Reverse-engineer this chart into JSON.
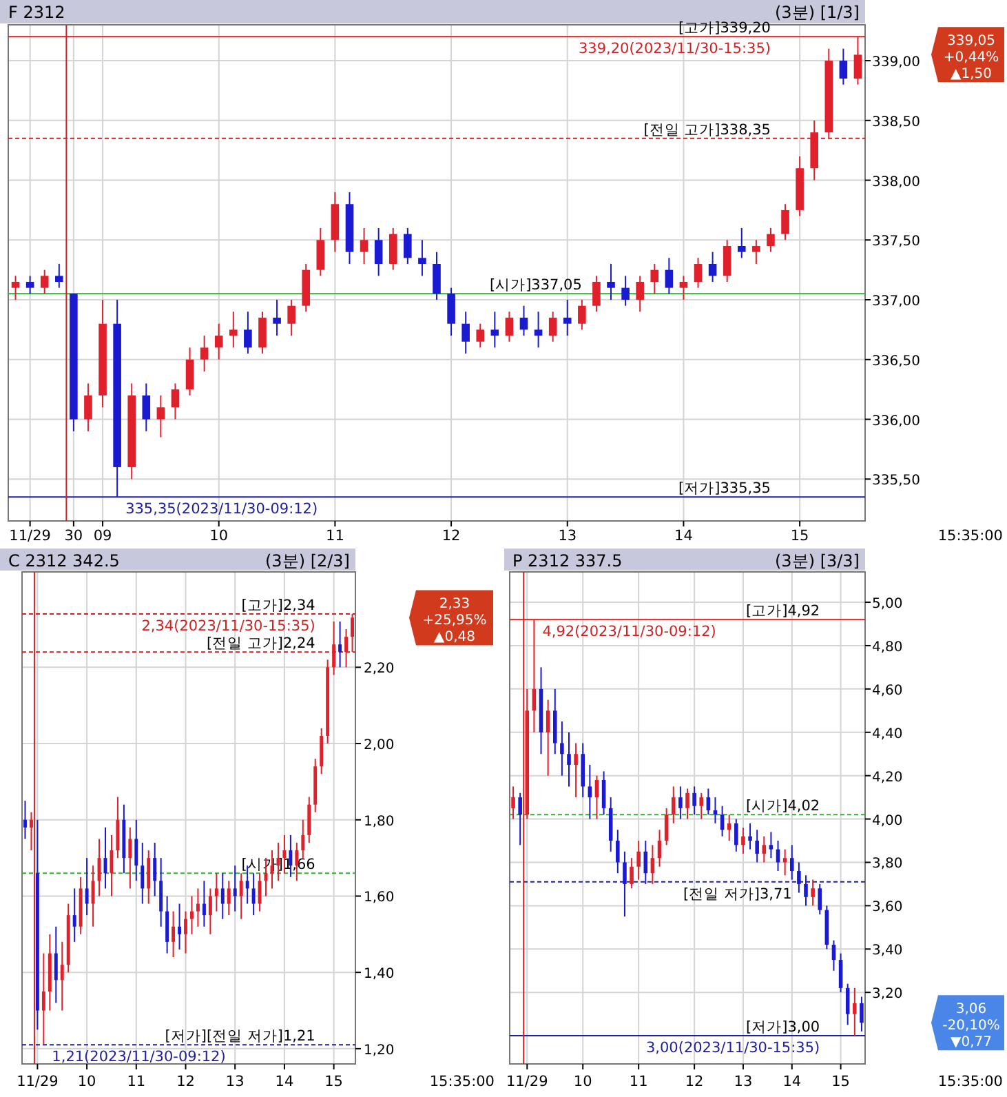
{
  "chart_data": [
    {
      "type": "candlestick",
      "title": "F 2312",
      "subtitle": "(3분) [1/3]",
      "grid": true,
      "categories": [
        null,
        "11/29",
        null,
        null,
        "30",
        null,
        "09",
        null,
        null,
        null,
        null,
        null,
        null,
        null,
        "10",
        null,
        null,
        null,
        null,
        null,
        null,
        null,
        "11",
        null,
        null,
        null,
        null,
        null,
        null,
        null,
        "12",
        null,
        null,
        null,
        null,
        null,
        null,
        null,
        "13",
        null,
        null,
        null,
        null,
        null,
        null,
        null,
        "14",
        null,
        null,
        null,
        null,
        null,
        null,
        null,
        "15",
        null,
        null,
        null,
        null
      ],
      "ohlc": [
        [
          337.1,
          337.2,
          337.0,
          337.15
        ],
        [
          337.15,
          337.2,
          337.05,
          337.1
        ],
        [
          337.1,
          337.25,
          337.05,
          337.2
        ],
        [
          337.2,
          337.3,
          337.1,
          337.15
        ],
        [
          337.05,
          337.05,
          335.9,
          336.0
        ],
        [
          336.0,
          336.3,
          335.9,
          336.2
        ],
        [
          336.2,
          337.0,
          336.1,
          336.8
        ],
        [
          336.8,
          337.0,
          335.35,
          335.6
        ],
        [
          335.6,
          336.3,
          335.5,
          336.2
        ],
        [
          336.2,
          336.3,
          335.9,
          336.0
        ],
        [
          336.0,
          336.2,
          335.85,
          336.1
        ],
        [
          336.1,
          336.3,
          336.0,
          336.25
        ],
        [
          336.25,
          336.6,
          336.2,
          336.5
        ],
        [
          336.5,
          336.7,
          336.4,
          336.6
        ],
        [
          336.6,
          336.8,
          336.5,
          336.7
        ],
        [
          336.7,
          336.9,
          336.6,
          336.75
        ],
        [
          336.75,
          336.9,
          336.55,
          336.6
        ],
        [
          336.6,
          336.9,
          336.55,
          336.85
        ],
        [
          336.85,
          337.0,
          336.7,
          336.8
        ],
        [
          336.8,
          337.0,
          336.7,
          336.95
        ],
        [
          336.95,
          337.3,
          336.9,
          337.25
        ],
        [
          337.25,
          337.6,
          337.2,
          337.5
        ],
        [
          337.5,
          337.9,
          337.4,
          337.8
        ],
        [
          337.8,
          337.9,
          337.3,
          337.4
        ],
        [
          337.4,
          337.6,
          337.3,
          337.5
        ],
        [
          337.5,
          337.6,
          337.2,
          337.3
        ],
        [
          337.3,
          337.6,
          337.25,
          337.55
        ],
        [
          337.55,
          337.6,
          337.3,
          337.35
        ],
        [
          337.35,
          337.5,
          337.2,
          337.3
        ],
        [
          337.3,
          337.4,
          337.0,
          337.05
        ],
        [
          337.05,
          337.1,
          336.7,
          336.8
        ],
        [
          336.8,
          336.9,
          336.55,
          336.65
        ],
        [
          336.65,
          336.8,
          336.6,
          336.75
        ],
        [
          336.75,
          336.9,
          336.6,
          336.7
        ],
        [
          336.7,
          336.9,
          336.65,
          336.85
        ],
        [
          336.85,
          336.95,
          336.7,
          336.75
        ],
        [
          336.75,
          336.9,
          336.6,
          336.7
        ],
        [
          336.7,
          336.9,
          336.65,
          336.85
        ],
        [
          336.85,
          337.0,
          336.7,
          336.8
        ],
        [
          336.8,
          337.0,
          336.75,
          336.95
        ],
        [
          336.95,
          337.2,
          336.9,
          337.15
        ],
        [
          337.15,
          337.3,
          337.0,
          337.1
        ],
        [
          337.1,
          337.2,
          336.95,
          337.0
        ],
        [
          337.0,
          337.2,
          336.9,
          337.15
        ],
        [
          337.15,
          337.3,
          337.05,
          337.25
        ],
        [
          337.25,
          337.35,
          337.05,
          337.1
        ],
        [
          337.1,
          337.2,
          337.0,
          337.15
        ],
        [
          337.15,
          337.35,
          337.1,
          337.3
        ],
        [
          337.3,
          337.4,
          337.15,
          337.2
        ],
        [
          337.2,
          337.5,
          337.15,
          337.45
        ],
        [
          337.45,
          337.6,
          337.35,
          337.4
        ],
        [
          337.4,
          337.5,
          337.3,
          337.45
        ],
        [
          337.45,
          337.6,
          337.4,
          337.55
        ],
        [
          337.55,
          337.8,
          337.5,
          337.75
        ],
        [
          337.75,
          338.2,
          337.7,
          338.1
        ],
        [
          338.1,
          338.5,
          338.0,
          338.4
        ],
        [
          338.4,
          339.1,
          338.35,
          339.0
        ],
        [
          339.0,
          339.1,
          338.8,
          338.85
        ],
        [
          338.85,
          339.2,
          338.8,
          339.05
        ]
      ],
      "ylim": [
        335.15,
        339.3
      ],
      "yticks": [
        {
          "value": 335.5,
          "label": "335,50"
        },
        {
          "value": 336.0,
          "label": "336,00"
        },
        {
          "value": 336.5,
          "label": "336,50"
        },
        {
          "value": 337.0,
          "label": "337,00"
        },
        {
          "value": 337.5,
          "label": "337,50"
        },
        {
          "value": 338.0,
          "label": "338,00"
        },
        {
          "value": 338.5,
          "label": "338,50"
        },
        {
          "value": 339.0,
          "label": "339,00"
        }
      ],
      "ref_lines": [
        {
          "axis": "y",
          "value": 339.2,
          "label": "[고가]339,20",
          "color": "#d42020",
          "line_style": "solid"
        },
        {
          "axis": "y",
          "value": 338.35,
          "label": "[전일 고가]338,35",
          "color": "#d42020",
          "line_style": "dashed"
        },
        {
          "axis": "y",
          "value": 337.05,
          "label": "[시가]337,05",
          "color": "#30b030",
          "line_style": "solid"
        },
        {
          "axis": "y",
          "value": 335.35,
          "label": "[저가]335,35",
          "color": "#2020a0",
          "line_style": "solid"
        },
        {
          "axis": "x",
          "value": "30",
          "label": null,
          "color": "#d42020",
          "line_style": "solid"
        }
      ],
      "annotations": [
        {
          "text": "339,20(2023/11/30-15:35)",
          "y": 339.2
        },
        {
          "text": "335,35(2023/11/30-09:12)",
          "y": 335.35
        },
        "339,05\n+0,44%\n▲1,50",
        "15:35:00"
      ]
    },
    {
      "type": "candlestick",
      "title": "C 2312 342.5",
      "subtitle": "(3분) [2/3]",
      "grid": true,
      "categories": [
        null,
        null,
        "11/29",
        null,
        null,
        null,
        null,
        null,
        null,
        null,
        "10",
        null,
        null,
        null,
        null,
        null,
        null,
        null,
        "11",
        null,
        null,
        null,
        null,
        null,
        null,
        null,
        "12",
        null,
        null,
        null,
        null,
        null,
        null,
        null,
        "13",
        null,
        null,
        null,
        null,
        null,
        null,
        null,
        "14",
        null,
        null,
        null,
        null,
        null,
        null,
        null,
        "15",
        null,
        null,
        null
      ],
      "ohlc": [
        [
          1.8,
          1.85,
          1.75,
          1.78
        ],
        [
          1.78,
          1.82,
          1.72,
          1.8
        ],
        [
          1.66,
          1.8,
          1.25,
          1.3
        ],
        [
          1.3,
          1.45,
          1.21,
          1.35
        ],
        [
          1.35,
          1.5,
          1.3,
          1.45
        ],
        [
          1.45,
          1.52,
          1.32,
          1.38
        ],
        [
          1.38,
          1.48,
          1.3,
          1.42
        ],
        [
          1.42,
          1.58,
          1.4,
          1.55
        ],
        [
          1.55,
          1.62,
          1.48,
          1.52
        ],
        [
          1.52,
          1.65,
          1.5,
          1.62
        ],
        [
          1.62,
          1.7,
          1.55,
          1.58
        ],
        [
          1.58,
          1.68,
          1.52,
          1.64
        ],
        [
          1.64,
          1.75,
          1.6,
          1.7
        ],
        [
          1.7,
          1.78,
          1.62,
          1.66
        ],
        [
          1.66,
          1.76,
          1.6,
          1.72
        ],
        [
          1.72,
          1.86,
          1.7,
          1.8
        ],
        [
          1.8,
          1.84,
          1.66,
          1.7
        ],
        [
          1.7,
          1.78,
          1.62,
          1.75
        ],
        [
          1.75,
          1.8,
          1.64,
          1.68
        ],
        [
          1.68,
          1.74,
          1.58,
          1.62
        ],
        [
          1.62,
          1.72,
          1.58,
          1.7
        ],
        [
          1.7,
          1.74,
          1.6,
          1.64
        ],
        [
          1.64,
          1.7,
          1.52,
          1.56
        ],
        [
          1.56,
          1.6,
          1.45,
          1.48
        ],
        [
          1.48,
          1.56,
          1.44,
          1.52
        ],
        [
          1.52,
          1.58,
          1.46,
          1.5
        ],
        [
          1.5,
          1.56,
          1.45,
          1.54
        ],
        [
          1.54,
          1.6,
          1.5,
          1.56
        ],
        [
          1.56,
          1.62,
          1.52,
          1.58
        ],
        [
          1.58,
          1.64,
          1.52,
          1.55
        ],
        [
          1.55,
          1.62,
          1.5,
          1.6
        ],
        [
          1.6,
          1.66,
          1.56,
          1.62
        ],
        [
          1.62,
          1.66,
          1.54,
          1.58
        ],
        [
          1.58,
          1.64,
          1.55,
          1.62
        ],
        [
          1.62,
          1.68,
          1.56,
          1.6
        ],
        [
          1.6,
          1.66,
          1.54,
          1.64
        ],
        [
          1.64,
          1.68,
          1.58,
          1.62
        ],
        [
          1.62,
          1.66,
          1.55,
          1.58
        ],
        [
          1.58,
          1.66,
          1.56,
          1.64
        ],
        [
          1.64,
          1.7,
          1.6,
          1.66
        ],
        [
          1.66,
          1.72,
          1.62,
          1.68
        ],
        [
          1.68,
          1.74,
          1.64,
          1.7
        ],
        [
          1.7,
          1.76,
          1.66,
          1.72
        ],
        [
          1.72,
          1.76,
          1.65,
          1.68
        ],
        [
          1.68,
          1.74,
          1.64,
          1.72
        ],
        [
          1.72,
          1.8,
          1.7,
          1.76
        ],
        [
          1.76,
          1.86,
          1.74,
          1.84
        ],
        [
          1.84,
          1.96,
          1.82,
          1.94
        ],
        [
          1.94,
          2.04,
          1.92,
          2.02
        ],
        [
          2.02,
          2.22,
          2.0,
          2.2
        ],
        [
          2.2,
          2.32,
          2.18,
          2.26
        ],
        [
          2.26,
          2.32,
          2.2,
          2.24
        ],
        [
          2.24,
          2.3,
          2.2,
          2.28
        ],
        [
          2.28,
          2.34,
          2.24,
          2.33
        ]
      ],
      "ylim": [
        1.16,
        2.45
      ],
      "yticks": [
        {
          "value": 1.2,
          "label": "1,20"
        },
        {
          "value": 1.4,
          "label": "1,40"
        },
        {
          "value": 1.6,
          "label": "1,60"
        },
        {
          "value": 1.8,
          "label": "1,80"
        },
        {
          "value": 2.0,
          "label": "2,00"
        },
        {
          "value": 2.2,
          "label": "2,20"
        }
      ],
      "ref_lines": [
        {
          "axis": "y",
          "value": 2.34,
          "label": "[고가]2,34",
          "color": "#d42020",
          "line_style": "dashed"
        },
        {
          "axis": "y",
          "value": 2.24,
          "label": "[전일 고가]2,24",
          "color": "#d42020",
          "line_style": "dashed"
        },
        {
          "axis": "y",
          "value": 1.66,
          "label": "[시가]1,66",
          "color": "#30b030",
          "line_style": "dashed"
        },
        {
          "axis": "y",
          "value": 1.21,
          "label": "[저가][전일 저가]1,21",
          "color": "#2020a0",
          "line_style": "dashed"
        },
        {
          "axis": "x",
          "value": "11/29",
          "label": null,
          "color": "#d42020",
          "line_style": "solid"
        }
      ],
      "annotations": [
        {
          "text": "2,34(2023/11/30-15:35)",
          "y": 2.34
        },
        {
          "text": "1,21(2023/11/30-09:12)",
          "y": 1.21
        },
        "2,33\n+25,95%\n▲0,48",
        "15:35:00"
      ]
    },
    {
      "type": "candlestick",
      "title": "P 2312 337.5",
      "subtitle": "(3분) [3/3]",
      "grid": true,
      "categories": [
        null,
        null,
        "11/29",
        null,
        null,
        null,
        null,
        null,
        null,
        null,
        "10",
        null,
        null,
        null,
        null,
        null,
        null,
        null,
        "11",
        null,
        null,
        null,
        null,
        null,
        null,
        null,
        "12",
        null,
        null,
        null,
        null,
        null,
        null,
        "13",
        null,
        null,
        null,
        null,
        null,
        null,
        "14",
        null,
        null,
        null,
        null,
        null,
        null,
        "15",
        null,
        null,
        null
      ],
      "ohlc": [
        [
          4.05,
          4.15,
          4.0,
          4.1
        ],
        [
          4.1,
          4.12,
          3.88,
          4.02
        ],
        [
          4.02,
          4.6,
          4.0,
          4.5
        ],
        [
          4.5,
          4.92,
          4.4,
          4.6
        ],
        [
          4.6,
          4.7,
          4.3,
          4.4
        ],
        [
          4.4,
          4.55,
          4.2,
          4.5
        ],
        [
          4.5,
          4.6,
          4.3,
          4.35
        ],
        [
          4.35,
          4.45,
          4.2,
          4.3
        ],
        [
          4.3,
          4.4,
          4.15,
          4.25
        ],
        [
          4.25,
          4.35,
          4.1,
          4.3
        ],
        [
          4.3,
          4.35,
          4.1,
          4.15
        ],
        [
          4.15,
          4.25,
          4.0,
          4.1
        ],
        [
          4.1,
          4.2,
          4.0,
          4.18
        ],
        [
          4.18,
          4.22,
          4.02,
          4.05
        ],
        [
          4.05,
          4.1,
          3.85,
          3.9
        ],
        [
          3.9,
          3.95,
          3.75,
          3.8
        ],
        [
          3.8,
          3.85,
          3.55,
          3.7
        ],
        [
          3.7,
          3.82,
          3.68,
          3.78
        ],
        [
          3.78,
          3.9,
          3.72,
          3.85
        ],
        [
          3.85,
          3.9,
          3.7,
          3.75
        ],
        [
          3.75,
          3.88,
          3.7,
          3.82
        ],
        [
          3.82,
          3.95,
          3.78,
          3.9
        ],
        [
          3.9,
          4.05,
          3.88,
          4.02
        ],
        [
          4.02,
          4.15,
          3.98,
          4.1
        ],
        [
          4.1,
          4.15,
          4.0,
          4.05
        ],
        [
          4.05,
          4.14,
          4.0,
          4.12
        ],
        [
          4.12,
          4.15,
          4.02,
          4.06
        ],
        [
          4.06,
          4.12,
          4.0,
          4.1
        ],
        [
          4.1,
          4.14,
          4.02,
          4.04
        ],
        [
          4.04,
          4.1,
          3.98,
          4.02
        ],
        [
          4.02,
          4.06,
          3.92,
          3.95
        ],
        [
          3.95,
          4.02,
          3.9,
          3.98
        ],
        [
          3.98,
          4.0,
          3.85,
          3.88
        ],
        [
          3.88,
          3.96,
          3.84,
          3.92
        ],
        [
          3.92,
          3.98,
          3.86,
          3.9
        ],
        [
          3.9,
          3.95,
          3.8,
          3.84
        ],
        [
          3.84,
          3.92,
          3.8,
          3.88
        ],
        [
          3.88,
          3.94,
          3.82,
          3.86
        ],
        [
          3.86,
          3.9,
          3.76,
          3.8
        ],
        [
          3.8,
          3.86,
          3.74,
          3.82
        ],
        [
          3.82,
          3.88,
          3.72,
          3.76
        ],
        [
          3.76,
          3.8,
          3.66,
          3.7
        ],
        [
          3.7,
          3.74,
          3.6,
          3.64
        ],
        [
          3.64,
          3.72,
          3.6,
          3.68
        ],
        [
          3.68,
          3.7,
          3.56,
          3.58
        ],
        [
          3.58,
          3.6,
          3.4,
          3.42
        ],
        [
          3.42,
          3.44,
          3.3,
          3.35
        ],
        [
          3.35,
          3.38,
          3.2,
          3.22
        ],
        [
          3.22,
          3.24,
          3.05,
          3.1
        ],
        [
          3.1,
          3.22,
          3.0,
          3.15
        ],
        [
          3.15,
          3.18,
          3.02,
          3.06
        ]
      ],
      "ylim": [
        2.87,
        5.14
      ],
      "yticks": [
        {
          "value": 3.2,
          "label": "3,20"
        },
        {
          "value": 3.4,
          "label": "3,40"
        },
        {
          "value": 3.6,
          "label": "3,60"
        },
        {
          "value": 3.8,
          "label": "3,80"
        },
        {
          "value": 4.0,
          "label": "4,00"
        },
        {
          "value": 4.2,
          "label": "4,20"
        },
        {
          "value": 4.4,
          "label": "4,40"
        },
        {
          "value": 4.6,
          "label": "4,60"
        },
        {
          "value": 4.8,
          "label": "4,80"
        },
        {
          "value": 5.0,
          "label": "5,00"
        }
      ],
      "ref_lines": [
        {
          "axis": "y",
          "value": 4.92,
          "label": "[고가]4,92",
          "color": "#d42020",
          "line_style": "solid"
        },
        {
          "axis": "y",
          "value": 4.02,
          "label": "[시가]4,02",
          "color": "#30b030",
          "line_style": "dashed"
        },
        {
          "axis": "y",
          "value": 3.71,
          "label": "[전일 저가]3,71",
          "color": "#2020a0",
          "line_style": "dashed"
        },
        {
          "axis": "y",
          "value": 3.0,
          "label": "[저가]3,00",
          "color": "#2020a0",
          "line_style": "solid"
        },
        {
          "axis": "x",
          "value": "11/29",
          "label": null,
          "color": "#d42020",
          "line_style": "solid"
        }
      ],
      "annotations": [
        {
          "text": "4,92(2023/11/30-09:12)",
          "y": 4.92
        },
        {
          "text": "3,00(2023/11/30-15:35)",
          "y": 3.0
        },
        "3,06\n-20,10%\n▼0,77",
        "15:35:00"
      ]
    }
  ]
}
